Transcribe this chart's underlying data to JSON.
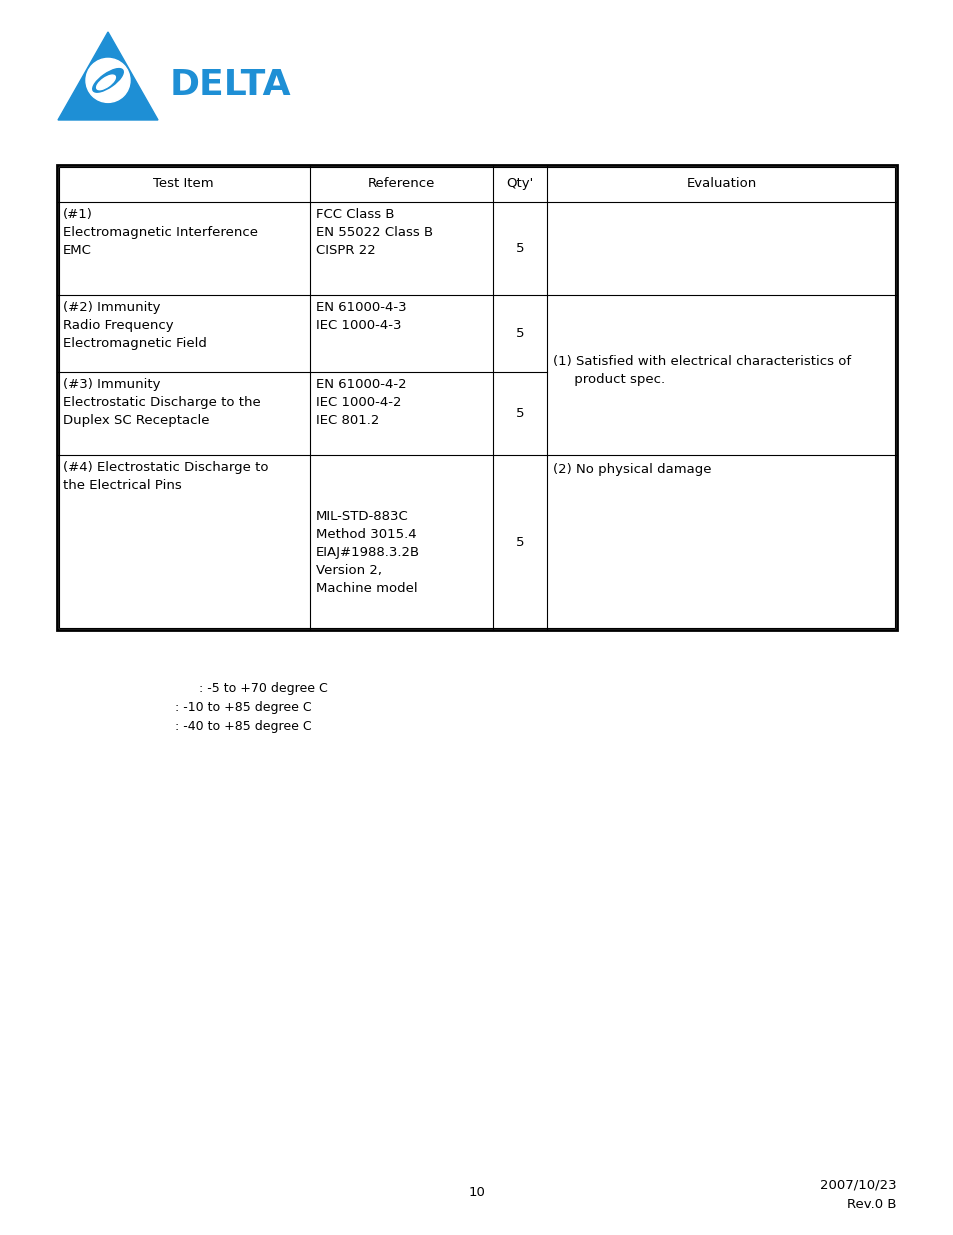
{
  "bg_color": "#ffffff",
  "delta_blue": "#1e8fd5",
  "text_color": "#000000",
  "page_number": "10",
  "date_text": "2007/10/23",
  "rev_text": "Rev.0 B",
  "table": {
    "header": [
      "Test Item",
      "Reference",
      "Qty'",
      "Evaluation"
    ],
    "rows": [
      {
        "test_item": "(#1)\nElectromagnetic Interference\nEMC",
        "reference": "FCC Class B\nEN 55022 Class B\nCISPR 22",
        "qty": "5",
        "evaluation": ""
      },
      {
        "test_item": "(#2) Immunity\nRadio Frequency\nElectromagnetic Field",
        "reference": "EN 61000-4-3\nIEC 1000-4-3",
        "qty": "5",
        "evaluation": "(1) Satisfied with electrical characteristics of\n     product spec."
      },
      {
        "test_item": "(#3) Immunity\nElectrostatic Discharge to the\nDuplex SC Receptacle",
        "reference": "EN 61000-4-2\nIEC 1000-4-2\nIEC 801.2",
        "qty": "5",
        "evaluation": ""
      },
      {
        "test_item": "(#4) Electrostatic Discharge to\nthe Electrical Pins",
        "reference": "MIL-STD-883C\nMethod 3015.4\nEIAJ#1988.3.2B\nVersion 2,\nMachine model",
        "qty": "5",
        "evaluation": "(2) No physical damage"
      }
    ]
  },
  "temp_lines": [
    "      : -5 to +70 degree C",
    ": -10 to +85 degree C",
    ": -40 to +85 degree C"
  ]
}
